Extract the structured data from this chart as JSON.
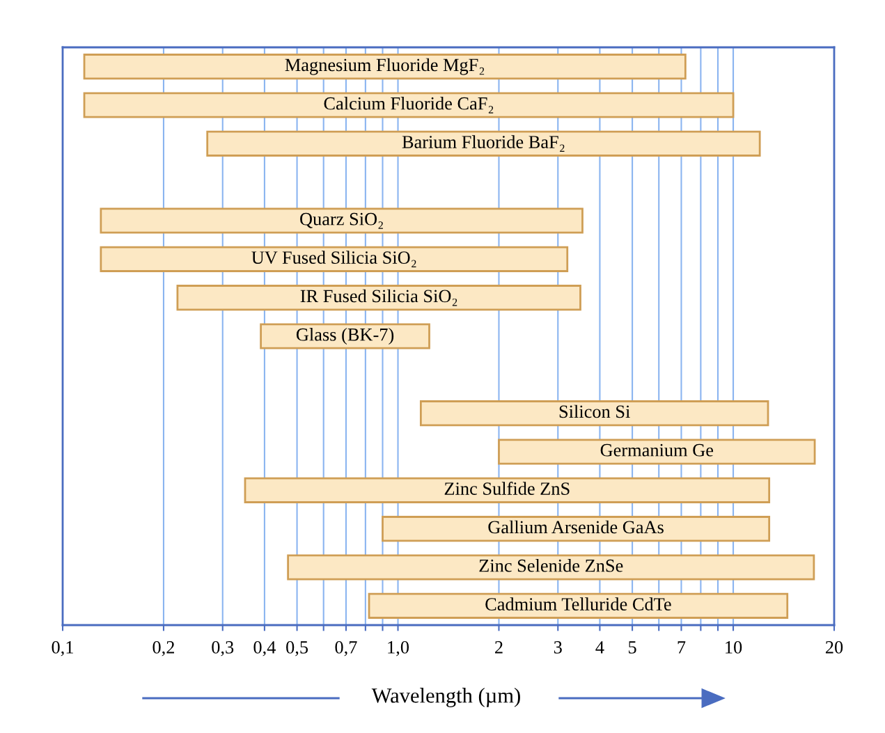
{
  "chart_data": {
    "type": "bar",
    "orientation": "horizontal",
    "xlabel": "Wavelength (µm)",
    "log": "x",
    "grid": "x",
    "tick_labels": "x",
    "categories": [
      "Magnesium Fluoride MgF₂",
      "Calcium Fluoride CaF₂",
      "Barium Fluoride BaF₂",
      null,
      "Quarz SiO₂",
      "UV Fused Silicia SiO₂",
      "IR Fused Silicia SiO₂",
      "Glass (BK-7)",
      null,
      "Silicon Si",
      "Germanium Ge",
      "Zinc Sulfide ZnS",
      "Gallium Arsenide GaAs",
      "Zinc Selenide ZnSe",
      "Cadmium Telluride CdTe"
    ],
    "base": [
      0.116,
      0.116,
      0.27,
      null,
      0.13,
      0.13,
      0.22,
      0.39,
      null,
      1.17,
      2.0,
      0.35,
      0.9,
      0.47,
      0.82
    ],
    "values": [
      7.084,
      9.884,
      11.73,
      null,
      3.42,
      3.07,
      3.28,
      0.85,
      null,
      11.53,
      15.5,
      12.45,
      11.9,
      16.93,
      13.68
    ],
    "color": "#fce8c4",
    "xlim": [
      0.1,
      20
    ],
    "xticks": [
      {
        "value": 0.1,
        "label": "0,1"
      },
      {
        "value": 0.2,
        "label": "0,2"
      },
      {
        "value": 0.3,
        "label": "0,3"
      },
      {
        "value": 0.4,
        "label": "0,4"
      },
      {
        "value": 0.5,
        "label": "0,5"
      },
      {
        "value": 0.6,
        "label": null
      },
      {
        "value": 0.7,
        "label": "0,7"
      },
      {
        "value": 0.8,
        "label": null
      },
      {
        "value": 0.9,
        "label": null
      },
      {
        "value": 1.0,
        "label": "1,0"
      },
      2,
      3,
      4,
      5,
      {
        "value": 6,
        "label": null
      },
      7,
      {
        "value": 8,
        "label": null
      },
      {
        "value": 9,
        "label": null
      },
      10,
      20
    ]
  }
}
